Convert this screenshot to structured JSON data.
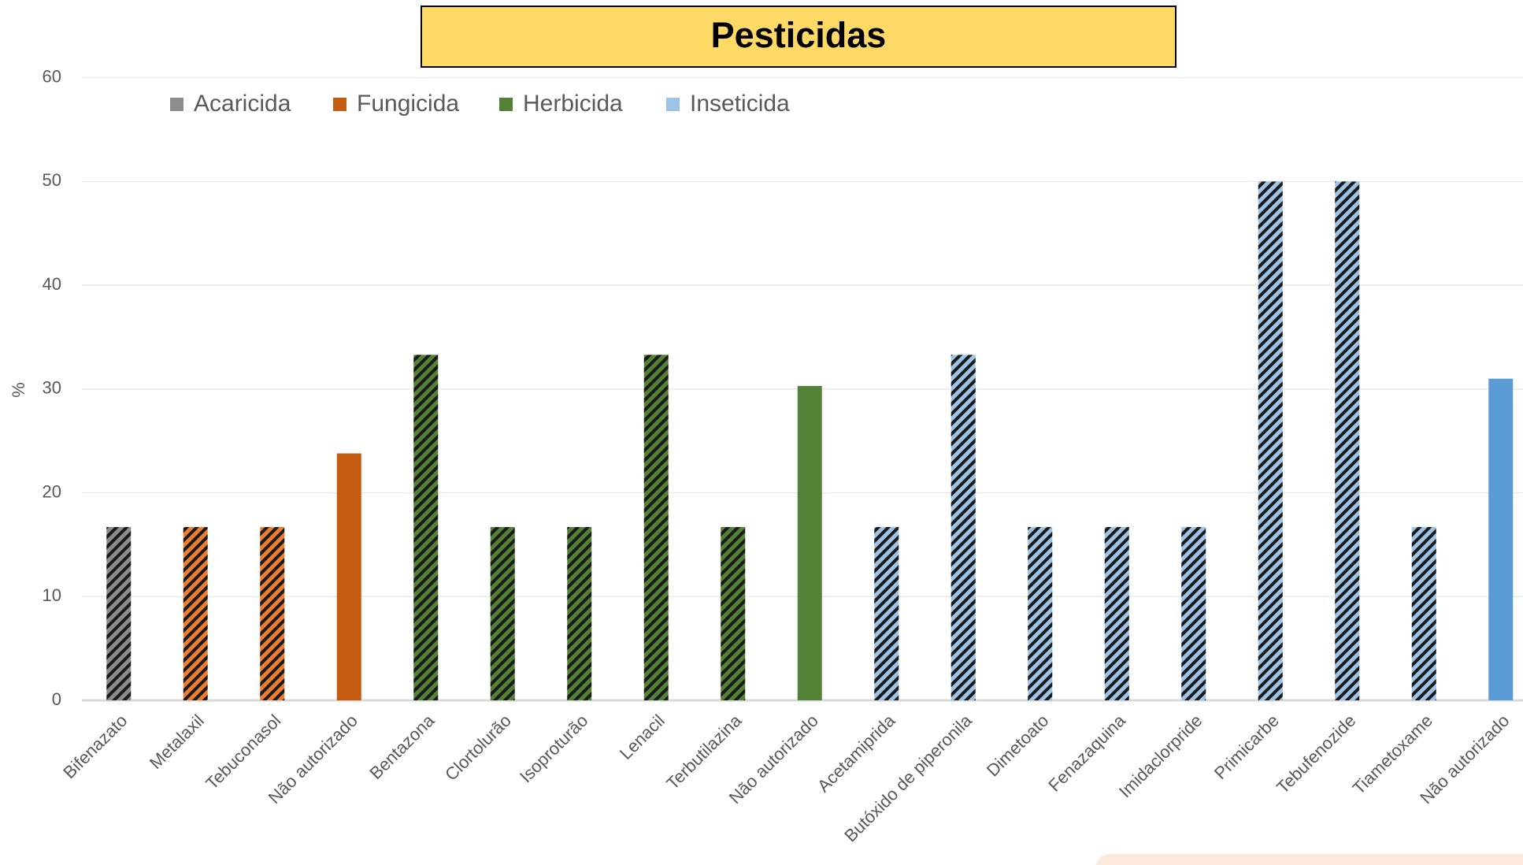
{
  "chart_data": {
    "type": "bar",
    "title": "Pesticidas",
    "y_label": "%",
    "categories": [
      "Bifenazato",
      "Metalaxil",
      "Tebuconasol",
      "Não autorizado",
      "Bentazona",
      "Clortolurão",
      "Isoproturão",
      "Lenacil",
      "Terbutilazina",
      "Não autorizado",
      "Acetamiprida",
      "Butóxido de piperonila",
      "Dimetoato",
      "Fenazaquina",
      "Imidaclorpride",
      "Primicarbe",
      "Tebufenozide",
      "Tiametoxame",
      "Não autorizado"
    ],
    "series": [
      {
        "name": "Acaricida",
        "color": "#8c8c8c",
        "values": [
          16.7,
          null,
          null,
          null,
          null,
          null,
          null,
          null,
          null,
          null,
          null,
          null,
          null,
          null,
          null,
          null,
          null,
          null,
          null
        ],
        "hatched": [
          true,
          null,
          null,
          null,
          null,
          null,
          null,
          null,
          null,
          null,
          null,
          null,
          null,
          null,
          null,
          null,
          null,
          null,
          null
        ],
        "colors": [
          "#8c8c8c",
          null,
          null,
          null,
          null,
          null,
          null,
          null,
          null,
          null,
          null,
          null,
          null,
          null,
          null,
          null,
          null,
          null,
          null
        ]
      },
      {
        "name": "Fungicida",
        "color": "#c55a11",
        "values": [
          null,
          16.7,
          16.7,
          23.8,
          null,
          null,
          null,
          null,
          null,
          null,
          null,
          null,
          null,
          null,
          null,
          null,
          null,
          null,
          null
        ],
        "hatched": [
          null,
          true,
          true,
          false,
          null,
          null,
          null,
          null,
          null,
          null,
          null,
          null,
          null,
          null,
          null,
          null,
          null,
          null,
          null
        ],
        "colors": [
          null,
          "#ed7d31",
          "#ed7d31",
          "#c55a11",
          null,
          null,
          null,
          null,
          null,
          null,
          null,
          null,
          null,
          null,
          null,
          null,
          null,
          null,
          null
        ]
      },
      {
        "name": "Herbicida",
        "color": "#538135",
        "values": [
          null,
          null,
          null,
          null,
          33.3,
          16.7,
          16.7,
          33.3,
          16.7,
          30.3,
          null,
          null,
          null,
          null,
          null,
          null,
          null,
          null,
          null
        ],
        "hatched": [
          null,
          null,
          null,
          null,
          true,
          true,
          true,
          true,
          true,
          false,
          null,
          null,
          null,
          null,
          null,
          null,
          null,
          null,
          null
        ],
        "colors": [
          null,
          null,
          null,
          null,
          "#538135",
          "#538135",
          "#538135",
          "#538135",
          "#538135",
          "#538135",
          null,
          null,
          null,
          null,
          null,
          null,
          null,
          null,
          null
        ]
      },
      {
        "name": "Inseticida",
        "color": "#9dc3e6",
        "values": [
          null,
          null,
          null,
          null,
          null,
          null,
          null,
          null,
          null,
          null,
          16.7,
          33.3,
          16.7,
          16.7,
          16.7,
          50,
          50,
          16.7,
          31
        ],
        "hatched": [
          null,
          null,
          null,
          null,
          null,
          null,
          null,
          null,
          null,
          null,
          true,
          true,
          true,
          true,
          true,
          true,
          true,
          true,
          false
        ],
        "colors": [
          null,
          null,
          null,
          null,
          null,
          null,
          null,
          null,
          null,
          null,
          "#9dc3e6",
          "#9dc3e6",
          "#9dc3e6",
          "#9dc3e6",
          "#9dc3e6",
          "#9dc3e6",
          "#9dc3e6",
          "#9dc3e6",
          "#5b9bd5"
        ]
      }
    ],
    "ylim": [
      0,
      60
    ],
    "yticks": [
      0,
      10,
      20,
      30,
      40,
      50,
      60
    ],
    "grid": true,
    "legend": "top"
  }
}
